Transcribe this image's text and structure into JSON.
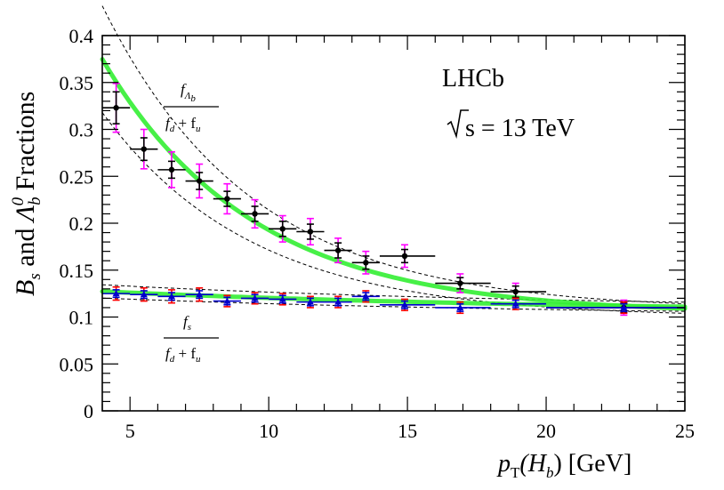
{
  "chart_data": {
    "type": "scatter",
    "xlabel_main": "p",
    "xlabel_sub": "T",
    "xlabel_arg": "(H",
    "xlabel_arg_sub": "b",
    "xlabel_tail": ") [GeV]",
    "ylabel": "B_s and Λ_b^0 Fractions",
    "ylabel_parts": [
      "B",
      "s",
      " and ",
      "Λ",
      "b",
      "0",
      " Fractions"
    ],
    "experiment": "LHCb",
    "energy_text": "s = 13 TeV",
    "xlim": [
      4,
      25
    ],
    "ylim": [
      0,
      0.4
    ],
    "xticks": [
      5,
      10,
      15,
      20,
      25
    ],
    "yticks": [
      0,
      0.05,
      0.1,
      0.15,
      0.2,
      0.25,
      0.3,
      0.35,
      0.4
    ],
    "ytick_labels": [
      "0",
      "0.05",
      "0.1",
      "0.15",
      "0.2",
      "0.25",
      "0.3",
      "0.35",
      "0.4"
    ],
    "grid": false,
    "labels": {
      "lambda_num": "f",
      "lambda_num_sub": "Λ",
      "lambda_num_subsub": "b",
      "lambda_den": "f",
      "lambda_den_sub1": "d",
      "lambda_den_plus": " + f",
      "lambda_den_sub2": "u",
      "bs_num": "f",
      "bs_num_sub": "s",
      "bs_den": "f",
      "bs_den_sub1": "d",
      "bs_den_plus": " + f",
      "bs_den_sub2": "u"
    },
    "colors": {
      "lambda_points": "#000000",
      "lambda_syst": "#ff00ff",
      "bs_points": "#0000cc",
      "bs_syst": "#ff0000",
      "fit": "#33ee33",
      "band": "#000000"
    },
    "series": [
      {
        "key": "lambda",
        "points": [
          {
            "x": 4.5,
            "xlo": 4,
            "xhi": 5,
            "y": 0.323,
            "stat": 0.017,
            "syst": 0.026
          },
          {
            "x": 5.5,
            "xlo": 5,
            "xhi": 6,
            "y": 0.279,
            "stat": 0.012,
            "syst": 0.021
          },
          {
            "x": 6.5,
            "xlo": 6,
            "xhi": 7,
            "y": 0.257,
            "stat": 0.009,
            "syst": 0.019
          },
          {
            "x": 7.5,
            "xlo": 7,
            "xhi": 8,
            "y": 0.245,
            "stat": 0.009,
            "syst": 0.018
          },
          {
            "x": 8.5,
            "xlo": 8,
            "xhi": 9,
            "y": 0.226,
            "stat": 0.008,
            "syst": 0.016
          },
          {
            "x": 9.5,
            "xlo": 9,
            "xhi": 10,
            "y": 0.21,
            "stat": 0.008,
            "syst": 0.015
          },
          {
            "x": 10.5,
            "xlo": 10,
            "xhi": 11,
            "y": 0.194,
            "stat": 0.008,
            "syst": 0.014
          },
          {
            "x": 11.5,
            "xlo": 11,
            "xhi": 12,
            "y": 0.191,
            "stat": 0.008,
            "syst": 0.014
          },
          {
            "x": 12.5,
            "xlo": 12,
            "xhi": 13,
            "y": 0.171,
            "stat": 0.008,
            "syst": 0.013
          },
          {
            "x": 13.5,
            "xlo": 13,
            "xhi": 14,
            "y": 0.158,
            "stat": 0.007,
            "syst": 0.012
          },
          {
            "x": 14.9,
            "xlo": 14,
            "xhi": 16,
            "y": 0.165,
            "stat": 0.007,
            "syst": 0.012
          },
          {
            "x": 16.9,
            "xlo": 16,
            "xhi": 18,
            "y": 0.136,
            "stat": 0.006,
            "syst": 0.01
          },
          {
            "x": 18.9,
            "xlo": 18,
            "xhi": 20,
            "y": 0.127,
            "stat": 0.006,
            "syst": 0.009
          },
          {
            "x": 22.8,
            "xlo": 20,
            "xhi": 25,
            "y": 0.11,
            "stat": 0.005,
            "syst": 0.008
          }
        ]
      },
      {
        "key": "bs",
        "points": [
          {
            "x": 4.5,
            "xlo": 4,
            "xhi": 5,
            "y": 0.125,
            "stat": 0.004,
            "syst": 0.007
          },
          {
            "x": 5.5,
            "xlo": 5,
            "xhi": 6,
            "y": 0.124,
            "stat": 0.004,
            "syst": 0.007
          },
          {
            "x": 6.5,
            "xlo": 6,
            "xhi": 7,
            "y": 0.122,
            "stat": 0.004,
            "syst": 0.007
          },
          {
            "x": 7.5,
            "xlo": 7,
            "xhi": 8,
            "y": 0.124,
            "stat": 0.004,
            "syst": 0.007
          },
          {
            "x": 8.5,
            "xlo": 8,
            "xhi": 9,
            "y": 0.117,
            "stat": 0.004,
            "syst": 0.006
          },
          {
            "x": 9.5,
            "xlo": 9,
            "xhi": 10,
            "y": 0.12,
            "stat": 0.004,
            "syst": 0.006
          },
          {
            "x": 10.5,
            "xlo": 10,
            "xhi": 11,
            "y": 0.119,
            "stat": 0.004,
            "syst": 0.006
          },
          {
            "x": 11.5,
            "xlo": 11,
            "xhi": 12,
            "y": 0.116,
            "stat": 0.004,
            "syst": 0.006
          },
          {
            "x": 12.5,
            "xlo": 12,
            "xhi": 13,
            "y": 0.116,
            "stat": 0.004,
            "syst": 0.006
          },
          {
            "x": 13.5,
            "xlo": 13,
            "xhi": 14,
            "y": 0.122,
            "stat": 0.004,
            "syst": 0.006
          },
          {
            "x": 14.9,
            "xlo": 14,
            "xhi": 16,
            "y": 0.113,
            "stat": 0.004,
            "syst": 0.006
          },
          {
            "x": 16.9,
            "xlo": 16,
            "xhi": 18,
            "y": 0.11,
            "stat": 0.004,
            "syst": 0.006
          },
          {
            "x": 18.9,
            "xlo": 18,
            "xhi": 20,
            "y": 0.114,
            "stat": 0.004,
            "syst": 0.006
          },
          {
            "x": 22.8,
            "xlo": 20,
            "xhi": 25,
            "y": 0.11,
            "stat": 0.004,
            "syst": 0.006
          }
        ]
      }
    ],
    "fits": [
      {
        "key": "lambda",
        "a": 0.1035,
        "b": 0.2713,
        "c": 0.1852,
        "band_rel": 0.065
      },
      {
        "key": "bs",
        "a": 0.1045,
        "b": 0.0228,
        "c": 0.06,
        "band_rel": 0.045
      }
    ]
  }
}
